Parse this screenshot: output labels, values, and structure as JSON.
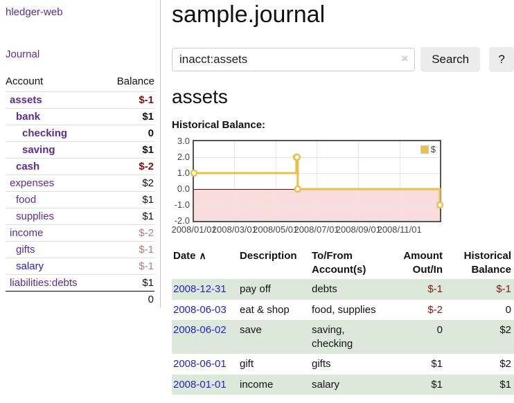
{
  "brand": "hledger-web",
  "nav": {
    "journal": "Journal"
  },
  "sidebar": {
    "headers": {
      "account": "Account",
      "balance": "Balance"
    },
    "rows": [
      {
        "account": "assets",
        "depth": 1,
        "bold": true,
        "balance": "$-1",
        "neg": "strong"
      },
      {
        "account": "bank",
        "depth": 2,
        "bold": true,
        "balance": "$1"
      },
      {
        "account": "checking",
        "depth": 3,
        "bold": true,
        "balance": "0"
      },
      {
        "account": "saving",
        "depth": 3,
        "bold": true,
        "balance": "$1"
      },
      {
        "account": "cash",
        "depth": 2,
        "bold": true,
        "balance": "$-2",
        "neg": "strong"
      },
      {
        "account": "expenses",
        "depth": 1,
        "bold": false,
        "balance": "$2"
      },
      {
        "account": "food",
        "depth": 2,
        "bold": false,
        "balance": "$1"
      },
      {
        "account": "supplies",
        "depth": 2,
        "bold": false,
        "balance": "$1"
      },
      {
        "account": "income",
        "depth": 1,
        "bold": false,
        "balance": "$-2",
        "neg": "soft"
      },
      {
        "account": "gifts",
        "depth": 2,
        "bold": false,
        "balance": "$-1",
        "neg": "soft"
      },
      {
        "account": "salary",
        "depth": 2,
        "bold": false,
        "balance": "$-1",
        "neg": "soft",
        "link": "blue"
      },
      {
        "account": "liabilities:debts",
        "depth": 1,
        "bold": false,
        "balance": "$1"
      }
    ],
    "total": "0"
  },
  "header": {
    "title": "sample.journal"
  },
  "search": {
    "value": "inacct:assets",
    "clear_icon": "×",
    "button_label": "Search",
    "help_label": "?"
  },
  "account_page": {
    "title": "assets",
    "chart_heading": "Historical Balance:"
  },
  "chart_data": {
    "type": "line",
    "title": "Historical Balance:",
    "step": true,
    "x_range": [
      "2008-01-01",
      "2008-12-31"
    ],
    "y_range": [
      -2,
      3
    ],
    "y_ticks": [
      "3.0",
      "2.0",
      "1.0",
      "0.0",
      "-1.0",
      "-2.0"
    ],
    "x_ticks": [
      {
        "date": "2008-01-01",
        "label": "2008/01/01"
      },
      {
        "date": "2008-03-01",
        "label": "2008/03/01"
      },
      {
        "date": "2008-05-01",
        "label": "2008/05/01"
      },
      {
        "date": "2008-07-01",
        "label": "2008/07/01"
      },
      {
        "date": "2008-09-01",
        "label": "2008/09/01"
      },
      {
        "date": "2008-11-01",
        "label": "2008/11/01"
      }
    ],
    "series": [
      {
        "name": "$",
        "color": "#e8c04a",
        "points": [
          {
            "date": "2008-01-01",
            "value": 1
          },
          {
            "date": "2008-06-01",
            "value": 2
          },
          {
            "date": "2008-06-02",
            "value": 2
          },
          {
            "date": "2008-06-03",
            "value": 0
          },
          {
            "date": "2008-12-31",
            "value": -1
          }
        ]
      }
    ],
    "zero_line_color": "#8b0000",
    "negative_region_color": "#f9dcdc",
    "grid_color": "#e6e6e6",
    "legend": {
      "position": "top-right",
      "label": "$"
    }
  },
  "register": {
    "sort_icon": "∧",
    "columns": [
      {
        "line1": "Date",
        "line2": ""
      },
      {
        "line1": "Description",
        "line2": ""
      },
      {
        "line1": "To/From",
        "line2": "Account(s)"
      },
      {
        "line1": "Amount",
        "line2": "Out/In"
      },
      {
        "line1": "Historical",
        "line2": "Balance"
      }
    ],
    "rows": [
      {
        "date": "2008-12-31",
        "description": "pay off",
        "accounts": "debts",
        "amount": "$-1",
        "amount_negative": true,
        "balance": "$-1",
        "balance_negative": true
      },
      {
        "date": "2008-06-03",
        "description": "eat & shop",
        "accounts": "food, supplies",
        "amount": "$-2",
        "amount_negative": true,
        "balance": "0",
        "balance_negative": false
      },
      {
        "date": "2008-06-02",
        "description": "save",
        "accounts": "saving, checking",
        "amount": "0",
        "amount_negative": false,
        "balance": "$2",
        "balance_negative": false
      },
      {
        "date": "2008-06-01",
        "description": "gift",
        "accounts": "gifts",
        "amount": "$1",
        "amount_negative": false,
        "balance": "$2",
        "balance_negative": false
      },
      {
        "date": "2008-01-01",
        "description": "income",
        "accounts": "salary",
        "amount": "$1",
        "amount_negative": false,
        "balance": "$1",
        "balance_negative": false
      }
    ]
  }
}
